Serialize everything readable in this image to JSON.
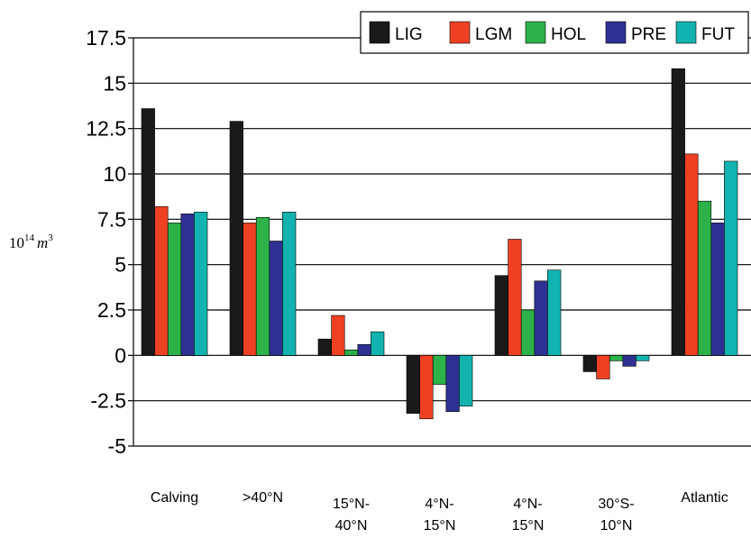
{
  "chart_data": {
    "type": "bar",
    "categories": [
      [
        "Calving"
      ],
      [
        ">40°N"
      ],
      [
        "15°N-",
        "40°N"
      ],
      [
        "4°N-",
        "15°N"
      ],
      [
        "4°N-",
        "15°N"
      ],
      [
        "30°S-",
        "10°N"
      ],
      [
        "Atlantic"
      ]
    ],
    "series": [
      {
        "name": "LIG",
        "color": "#1a1a1a",
        "values": [
          13.6,
          12.9,
          0.9,
          -3.2,
          4.4,
          -0.9,
          15.8
        ]
      },
      {
        "name": "LGM",
        "color": "#ee4123",
        "values": [
          8.2,
          7.3,
          2.2,
          -3.5,
          6.4,
          -1.3,
          11.1
        ]
      },
      {
        "name": "HOL",
        "color": "#2db24a",
        "values": [
          7.3,
          7.6,
          0.3,
          -1.6,
          2.5,
          -0.3,
          8.5
        ]
      },
      {
        "name": "PRE",
        "color": "#2e3192",
        "values": [
          7.8,
          6.3,
          0.6,
          -3.1,
          4.1,
          -0.6,
          7.3
        ]
      },
      {
        "name": "FUT",
        "color": "#12b3b0",
        "values": [
          7.9,
          7.9,
          1.3,
          -2.8,
          4.7,
          -0.3,
          10.7
        ]
      }
    ],
    "yticks": [
      "-5",
      "-2.5",
      "0",
      "2.5",
      "5",
      "7.5",
      "10",
      "12.5",
      "15",
      "17.5"
    ],
    "ylabel": {
      "base": "10",
      "exp": "14",
      "unit": "m",
      "unit_exp": "3"
    },
    "ylim": [
      -5,
      17.5
    ],
    "grid": true,
    "legend_position": "top-right"
  }
}
